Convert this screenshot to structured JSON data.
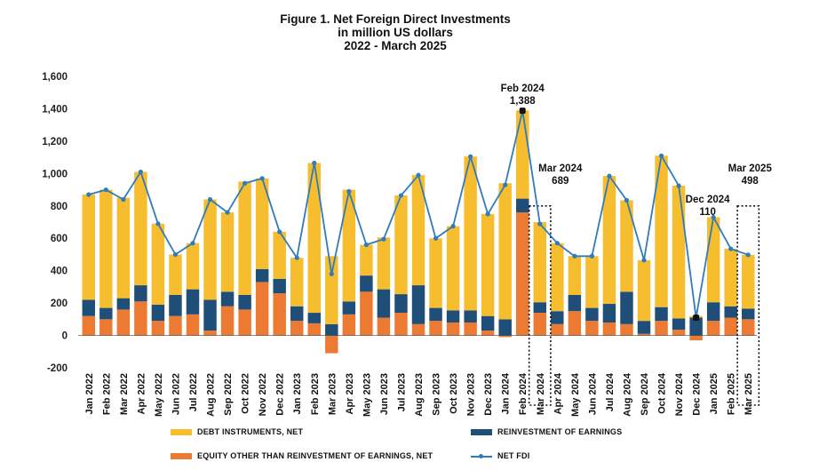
{
  "title_lines": [
    "Figure 1. Net Foreign Direct Investments",
    "in million US dollars",
    "2022 - March 2025"
  ],
  "colors": {
    "debt": "#F6BE2F",
    "reinvest": "#1F4E79",
    "equity": "#EC7A33",
    "line": "#2F7BBD",
    "dot_highlight": "#111111"
  },
  "chart_data": {
    "type": "bar",
    "stacked": true,
    "title": "Figure 1. Net Foreign Direct Investments in million US dollars 2022 - March 2025",
    "ylim": [
      -200,
      1600
    ],
    "yticks": [
      -200,
      0,
      200,
      400,
      600,
      800,
      1000,
      1200,
      1400,
      1600
    ],
    "ytick_labels": [
      "-200",
      "0",
      "200",
      "400",
      "600",
      "800",
      "1,000",
      "1,200",
      "1,400",
      "1,600"
    ],
    "grid": false,
    "legend_position": "bottom",
    "categories": [
      "Jan 2022",
      "Feb 2022",
      "Mar 2022",
      "Apr 2022",
      "May 2022",
      "Jun 2022",
      "Jul 2022",
      "Aug 2022",
      "Sep 2022",
      "Oct 2022",
      "Nov 2022",
      "Dec 2022",
      "Jan 2023",
      "Feb 2023",
      "Mar 2023",
      "Apr 2023",
      "May 2023",
      "Jun 2023",
      "Jul 2023",
      "Aug 2023",
      "Sep 2023",
      "Oct 2023",
      "Nov 2023",
      "Dec 2023",
      "Jan 2024",
      "Feb 2024",
      "Mar 2024",
      "Apr 2024",
      "May 2024",
      "Jun 2024",
      "Jul 2024",
      "Aug 2024",
      "Sep 2024",
      "Oct 2024",
      "Nov 2024",
      "Dec 2024",
      "Jan 2025",
      "Feb 2025",
      "Mar 2025"
    ],
    "series": [
      {
        "name": "EQUITY OTHER THAN REINVESTMENT OF EARNINGS, NET",
        "kind": "bar",
        "values": [
          120,
          100,
          160,
          210,
          90,
          120,
          130,
          30,
          180,
          160,
          330,
          260,
          90,
          75,
          -110,
          130,
          270,
          110,
          140,
          70,
          90,
          80,
          80,
          30,
          -10,
          760,
          140,
          70,
          150,
          90,
          80,
          70,
          10,
          90,
          35,
          -30,
          90,
          110,
          100
        ]
      },
      {
        "name": "REINVESTMENT OF EARNINGS",
        "kind": "bar",
        "values": [
          100,
          70,
          70,
          100,
          100,
          130,
          155,
          190,
          90,
          90,
          80,
          90,
          90,
          65,
          70,
          80,
          100,
          175,
          115,
          240,
          80,
          75,
          75,
          90,
          100,
          85,
          65,
          80,
          100,
          80,
          115,
          200,
          80,
          85,
          70,
          110,
          115,
          70,
          65
        ]
      },
      {
        "name": "DEBT INSTRUMENTS, NET",
        "kind": "bar",
        "values": [
          650,
          730,
          620,
          700,
          500,
          250,
          285,
          620,
          490,
          700,
          560,
          290,
          300,
          925,
          420,
          690,
          190,
          320,
          610,
          680,
          430,
          520,
          950,
          630,
          840,
          545,
          495,
          420,
          240,
          320,
          790,
          565,
          375,
          935,
          820,
          10,
          525,
          355,
          333
        ]
      },
      {
        "name": "NET FDI",
        "kind": "line",
        "values": [
          870,
          900,
          840,
          1010,
          690,
          500,
          570,
          840,
          760,
          940,
          970,
          640,
          480,
          1065,
          380,
          890,
          560,
          595,
          865,
          990,
          600,
          675,
          1105,
          750,
          930,
          1388,
          689,
          570,
          490,
          490,
          985,
          835,
          465,
          1110,
          925,
          110,
          730,
          535,
          498
        ]
      }
    ],
    "annotations": [
      {
        "index": 25,
        "label": "Feb 2024",
        "value_text": "1,388"
      },
      {
        "index": 26,
        "label": "Mar 2024",
        "value_text": "689"
      },
      {
        "index": 35,
        "label": "Dec 2024",
        "value_text": "110"
      },
      {
        "index": 38,
        "label": "Mar 2025",
        "value_text": "498"
      }
    ],
    "highlight_boxes": [
      26,
      38
    ]
  },
  "legend": {
    "debt": "DEBT INSTRUMENTS, NET",
    "reinvest": "REINVESTMENT OF EARNINGS",
    "equity": "EQUITY OTHER THAN REINVESTMENT OF EARNINGS, NET",
    "line": "NET FDI"
  }
}
